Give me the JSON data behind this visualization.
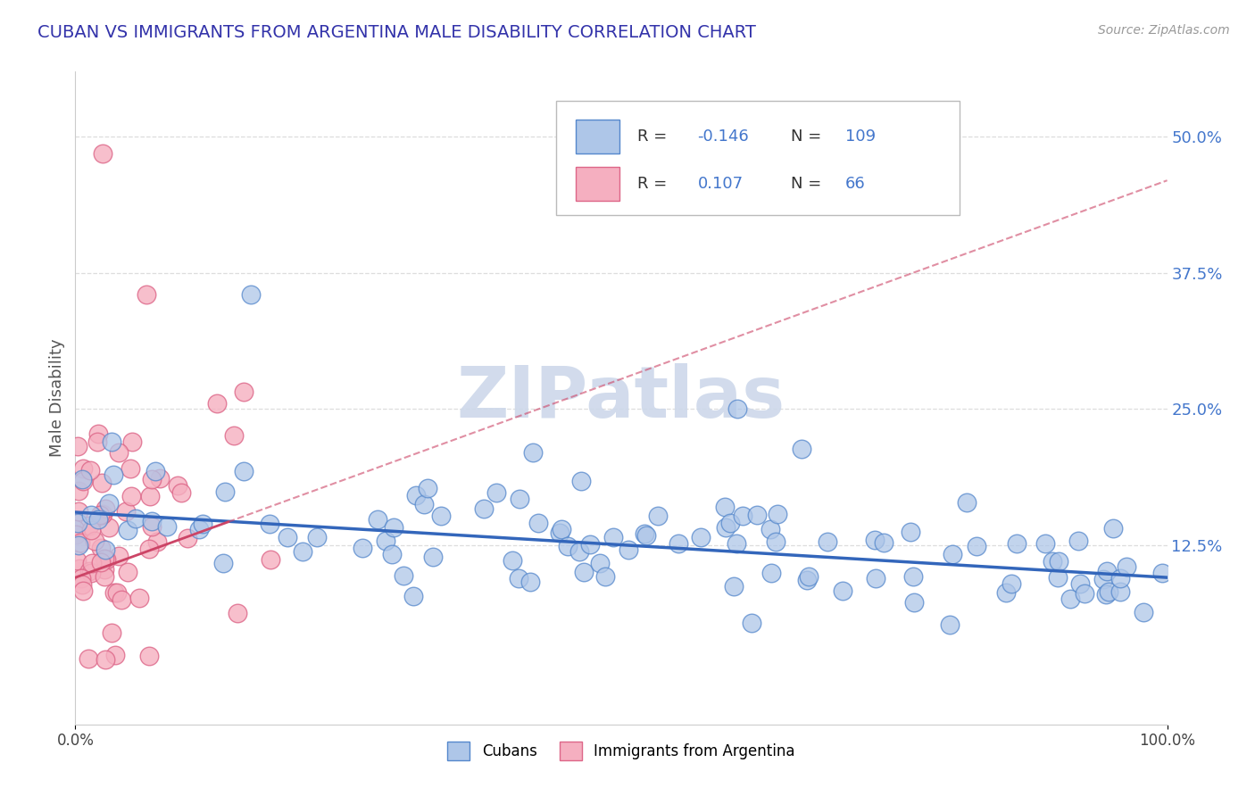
{
  "title": "CUBAN VS IMMIGRANTS FROM ARGENTINA MALE DISABILITY CORRELATION CHART",
  "source": "Source: ZipAtlas.com",
  "ylabel": "Male Disability",
  "right_yticks": [
    0.125,
    0.25,
    0.375,
    0.5
  ],
  "right_yticklabels": [
    "12.5%",
    "25.0%",
    "37.5%",
    "50.0%"
  ],
  "cubans_color": "#aec6e8",
  "argentina_color": "#f5afc0",
  "cubans_edge": "#5588cc",
  "argentina_edge": "#dd6688",
  "trend_blue_color": "#3366bb",
  "trend_pink_color": "#cc4466",
  "watermark_color": "#cdd8ea",
  "title_color": "#3333aa",
  "source_color": "#999999",
  "tick_color": "#4477cc",
  "grid_color": "#dddddd",
  "cubans_R": -0.146,
  "cubans_N": 109,
  "argentina_R": 0.107,
  "argentina_N": 66,
  "xlim": [
    0.0,
    1.0
  ],
  "ylim": [
    -0.04,
    0.56
  ],
  "trend_cu_x0": 0.0,
  "trend_cu_y0": 0.155,
  "trend_cu_x1": 1.0,
  "trend_cu_y1": 0.095,
  "trend_ar_x0": 0.0,
  "trend_ar_y0": 0.095,
  "trend_ar_x1": 1.0,
  "trend_ar_y1": 0.46
}
